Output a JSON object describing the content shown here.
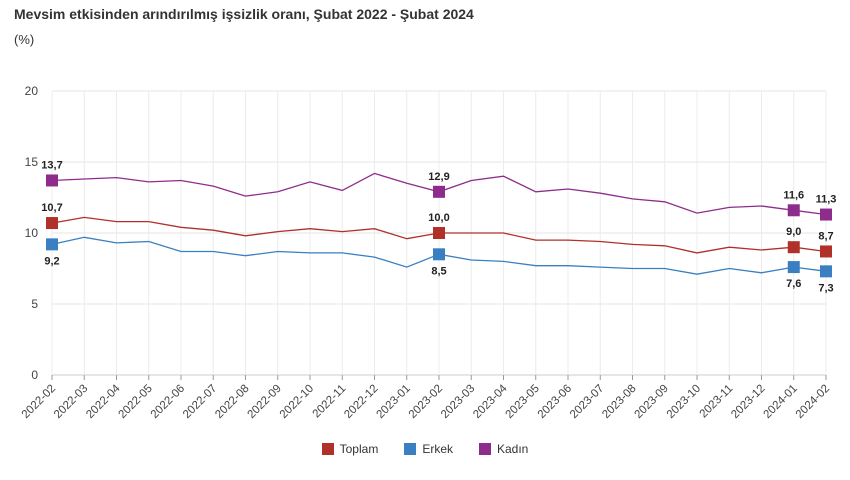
{
  "title": "Mevsim etkisinden arındırılmış işsizlik oranı, Şubat 2022 - Şubat 2024",
  "subtitle": "(%)",
  "chart_data": {
    "type": "line",
    "categories": [
      "2022-02",
      "2022-03",
      "2022-04",
      "2022-05",
      "2022-06",
      "2022-07",
      "2022-08",
      "2022-09",
      "2022-10",
      "2022-11",
      "2022-12",
      "2023-01",
      "2023-02",
      "2023-03",
      "2023-04",
      "2023-05",
      "2023-06",
      "2023-07",
      "2023-08",
      "2023-09",
      "2023-10",
      "2023-11",
      "2023-12",
      "2024-01",
      "2024-02"
    ],
    "ylim": [
      0,
      20
    ],
    "yticks": [
      0,
      5,
      10,
      15,
      20
    ],
    "grid": true,
    "legend_position": "bottom",
    "series": [
      {
        "name": "Toplam",
        "color": "#b0302a",
        "values": [
          10.7,
          11.1,
          10.8,
          10.8,
          10.4,
          10.2,
          9.8,
          10.1,
          10.3,
          10.1,
          10.3,
          9.6,
          10.0,
          10.0,
          10.0,
          9.5,
          9.5,
          9.4,
          9.2,
          9.1,
          8.6,
          9.0,
          8.8,
          9.0,
          8.7
        ],
        "labels": [
          {
            "index": 0,
            "text": "10,7"
          },
          {
            "index": 12,
            "text": "10,0"
          },
          {
            "index": 23,
            "text": "9,0"
          },
          {
            "index": 24,
            "text": "8,7"
          }
        ]
      },
      {
        "name": "Erkek",
        "color": "#3a7fc1",
        "values": [
          9.2,
          9.7,
          9.3,
          9.4,
          8.7,
          8.7,
          8.4,
          8.7,
          8.6,
          8.6,
          8.3,
          7.6,
          8.5,
          8.1,
          8.0,
          7.7,
          7.7,
          7.6,
          7.5,
          7.5,
          7.1,
          7.5,
          7.2,
          7.6,
          7.3
        ],
        "labels": [
          {
            "index": 0,
            "text": "9,2"
          },
          {
            "index": 12,
            "text": "8,5"
          },
          {
            "index": 23,
            "text": "7,6"
          },
          {
            "index": 24,
            "text": "7,3"
          }
        ]
      },
      {
        "name": "Kadın",
        "color": "#8e2c8c",
        "values": [
          13.7,
          13.8,
          13.9,
          13.6,
          13.7,
          13.3,
          12.6,
          12.9,
          13.6,
          13.0,
          14.2,
          13.5,
          12.9,
          13.7,
          14.0,
          12.9,
          13.1,
          12.8,
          12.4,
          12.2,
          11.4,
          11.8,
          11.9,
          11.6,
          11.3
        ],
        "labels": [
          {
            "index": 0,
            "text": "13,7"
          },
          {
            "index": 12,
            "text": "12,9"
          },
          {
            "index": 23,
            "text": "11,6"
          },
          {
            "index": 24,
            "text": "11,3"
          }
        ]
      }
    ]
  }
}
